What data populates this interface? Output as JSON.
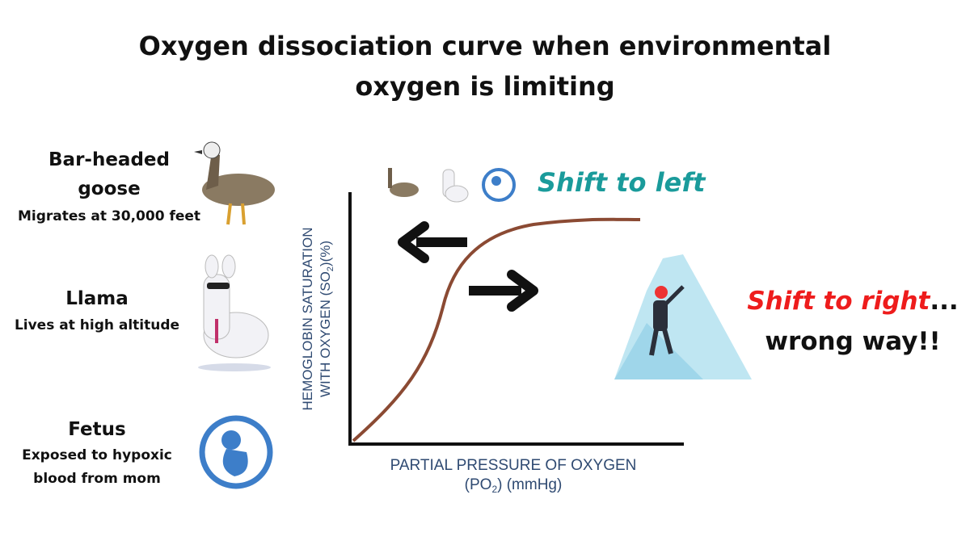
{
  "title": "Oxygen dissociation curve when environmental oxygen is limiting",
  "animals": [
    {
      "name": "Bar-headed goose",
      "note": "Migrates at 30,000 feet"
    },
    {
      "name": "Llama",
      "note": "Lives at high altitude"
    },
    {
      "name": "Fetus",
      "note": "Exposed to hypoxic blood from mom"
    }
  ],
  "graph": {
    "y_axis": {
      "line1": "HEMOGLOBIN SATURATION",
      "line2": "WITH OXYGEN (SO",
      "sub": "2",
      "end": ")(%)"
    },
    "x_axis": {
      "line1": "PARTIAL PRESSURE OF OXYGEN",
      "line2": "(PO",
      "sub": "2",
      "end": ") (mmHg)"
    }
  },
  "shift_left": "Shift to left",
  "shift_right": {
    "label": "Shift to right",
    "ellipsis": "...",
    "note": "wrong way!!"
  }
}
